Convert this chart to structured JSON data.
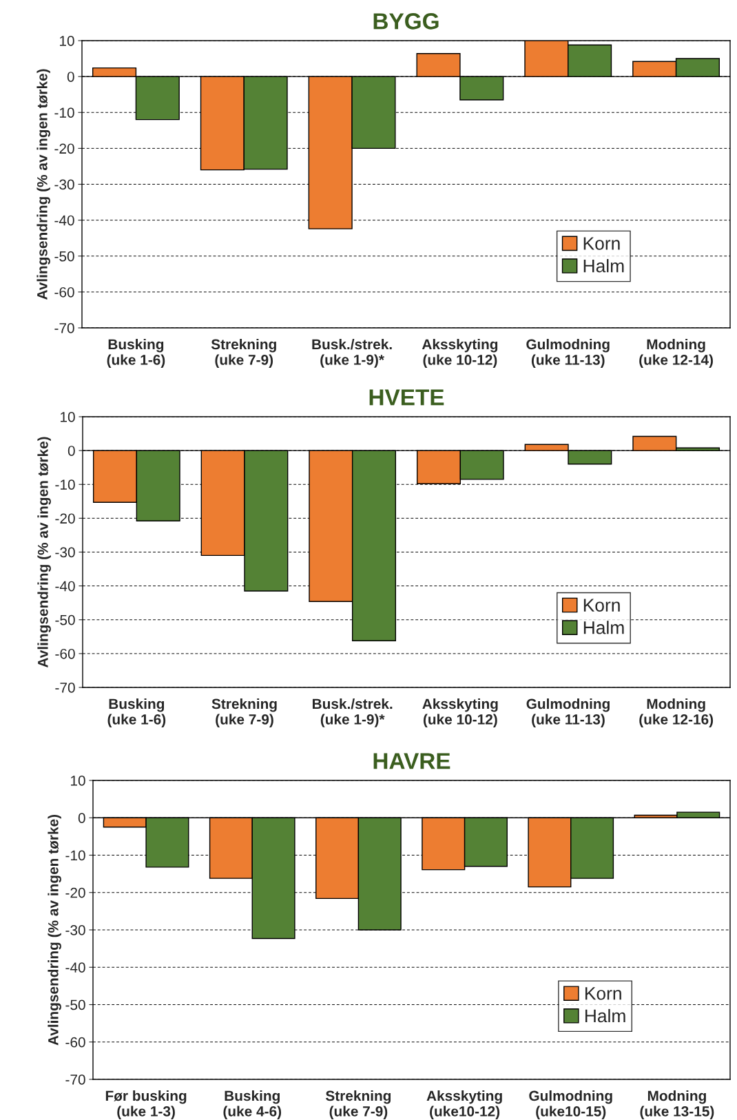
{
  "chart_data": [
    {
      "type": "bar",
      "title": "BYGG",
      "ylabel": "Avlingsendring (% av ingen tørke)",
      "categories": [
        "Busking\n(uke 1-6)",
        "Strekning\n(uke 7-9)",
        "Busk./strek.\n(uke 1-9)*",
        "Aksskyting\n(uke 10-12)",
        "Gulmodning\n(uke 11-13)",
        "Modning\n(uke 12-14)"
      ],
      "series": [
        {
          "name": "Korn",
          "color": "#ed7d31",
          "values": [
            2.4,
            -26,
            -42.4,
            6.4,
            10,
            4.2
          ]
        },
        {
          "name": "Halm",
          "color": "#548235",
          "values": [
            -12,
            -25.8,
            -20,
            -6.5,
            8.8,
            5
          ]
        }
      ],
      "ylim": [
        -70,
        10
      ],
      "yticks": [
        -70,
        -60,
        -50,
        -40,
        -30,
        -20,
        -10,
        0,
        10
      ],
      "grid": "y",
      "legend": "lower right",
      "ref_lines": [
        {
          "axis": "y",
          "value": 0,
          "color": "#000000"
        }
      ]
    },
    {
      "type": "bar",
      "title": "HVETE",
      "ylabel": "Avlingsendring (% av ingen tørke)",
      "categories": [
        "Busking\n(uke 1-6)",
        "Strekning\n(uke 7-9)",
        "Busk./strek.\n(uke 1-9)*",
        "Aksskyting\n(uke 10-12)",
        "Gulmodning\n(uke 11-13)",
        "Modning\n(uke 12-16)"
      ],
      "series": [
        {
          "name": "Korn",
          "color": "#ed7d31",
          "values": [
            -15.3,
            -31,
            -44.6,
            -9.8,
            1.8,
            4.2
          ]
        },
        {
          "name": "Halm",
          "color": "#548235",
          "values": [
            -20.8,
            -41.5,
            -56.2,
            -8.5,
            -4,
            0.8
          ]
        }
      ],
      "ylim": [
        -70,
        10
      ],
      "yticks": [
        -70,
        -60,
        -50,
        -40,
        -30,
        -20,
        -10,
        0,
        10
      ],
      "grid": "y",
      "legend": "lower right",
      "ref_lines": [
        {
          "axis": "y",
          "value": 0,
          "color": "#000000"
        }
      ]
    },
    {
      "type": "bar",
      "title": "HAVRE",
      "ylabel": "Avlingsendring (% av ingen tørke)",
      "categories": [
        "Før busking\n(uke 1-3)",
        "Busking\n(uke 4-6)",
        "Strekning\n(uke 7-9)",
        "Aksskyting\n(uke10-12)",
        "Gulmodning\n(uke10-15)",
        "Modning\n(uke 13-15)"
      ],
      "series": [
        {
          "name": "Korn",
          "color": "#ed7d31",
          "values": [
            -2.5,
            -16.2,
            -21.6,
            -13.9,
            -18.5,
            0.7
          ]
        },
        {
          "name": "Halm",
          "color": "#548235",
          "values": [
            -13.2,
            -32.3,
            -30,
            -13,
            -16.2,
            1.5
          ]
        }
      ],
      "ylim": [
        -70,
        10
      ],
      "yticks": [
        -70,
        -60,
        -50,
        -40,
        -30,
        -20,
        -10,
        0,
        10
      ],
      "grid": "y",
      "legend": "lower right",
      "ref_lines": [
        {
          "axis": "y",
          "value": 0,
          "color": "#000000"
        }
      ]
    }
  ]
}
